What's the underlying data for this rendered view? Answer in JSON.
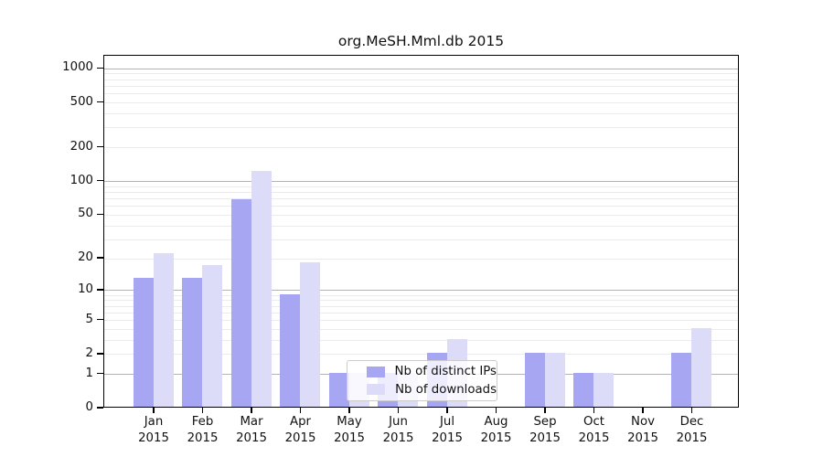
{
  "title": "org.MeSH.Mml.db 2015",
  "chart_data": {
    "type": "bar",
    "title": "org.MeSH.Mml.db 2015",
    "categories": [
      "Jan",
      "Feb",
      "Mar",
      "Apr",
      "May",
      "Jun",
      "Jul",
      "Aug",
      "Sep",
      "Oct",
      "Nov",
      "Dec"
    ],
    "year": "2015",
    "series": [
      {
        "name": "Nb of distinct IPs",
        "color": "#a6a6f2",
        "values": [
          13,
          13,
          68,
          9,
          1,
          1,
          2,
          0,
          2,
          1,
          0,
          2
        ]
      },
      {
        "name": "Nb of downloads",
        "color": "#dcdcf8",
        "values": [
          22,
          17,
          122,
          18,
          1,
          1,
          3,
          0,
          2,
          1,
          0,
          4
        ]
      }
    ],
    "y_ticks": [
      0,
      1,
      2,
      5,
      10,
      20,
      50,
      100,
      200,
      500,
      1000
    ],
    "y_scale": "log1p",
    "ylim": [
      0,
      1300
    ],
    "grid": "horizontal",
    "legend_position": "lower-center",
    "major_grid_values": [
      1,
      10,
      100,
      1000
    ],
    "colors": {
      "axis": "#000000",
      "major_grid": "#b4b4b4",
      "minor_grid": "#ebebeb",
      "legend_border": "#cccccc"
    }
  }
}
